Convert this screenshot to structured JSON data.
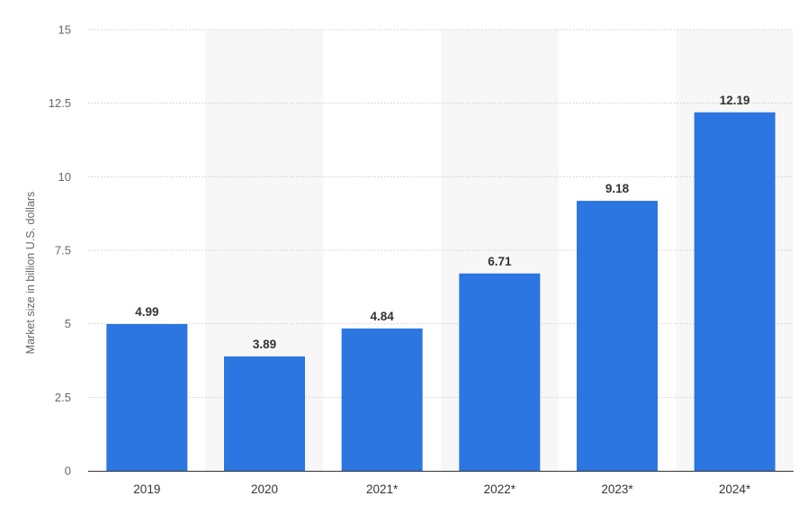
{
  "chart_data": {
    "type": "bar",
    "title": "",
    "xlabel": "",
    "ylabel": "Market size in billion U.S. dollars",
    "categories": [
      "2019",
      "2020",
      "2021*",
      "2022*",
      "2023*",
      "2024*"
    ],
    "values": [
      4.99,
      3.89,
      4.84,
      6.71,
      9.18,
      12.19
    ],
    "value_labels": [
      "4.99",
      "3.89",
      "4.84",
      "6.71",
      "9.18",
      "12.19"
    ],
    "ylim": [
      0,
      15
    ],
    "y_ticks": [
      0,
      2.5,
      5,
      7.5,
      10,
      12.5,
      15
    ],
    "y_tick_labels": [
      "0",
      "2.5",
      "5",
      "7.5",
      "10",
      "12.5",
      "15"
    ],
    "grid": true,
    "legend": "none",
    "colors": {
      "bar": "#2b76e0",
      "band": "#f7f7f7",
      "grid": "#cccccc",
      "axis": "#333333"
    }
  }
}
